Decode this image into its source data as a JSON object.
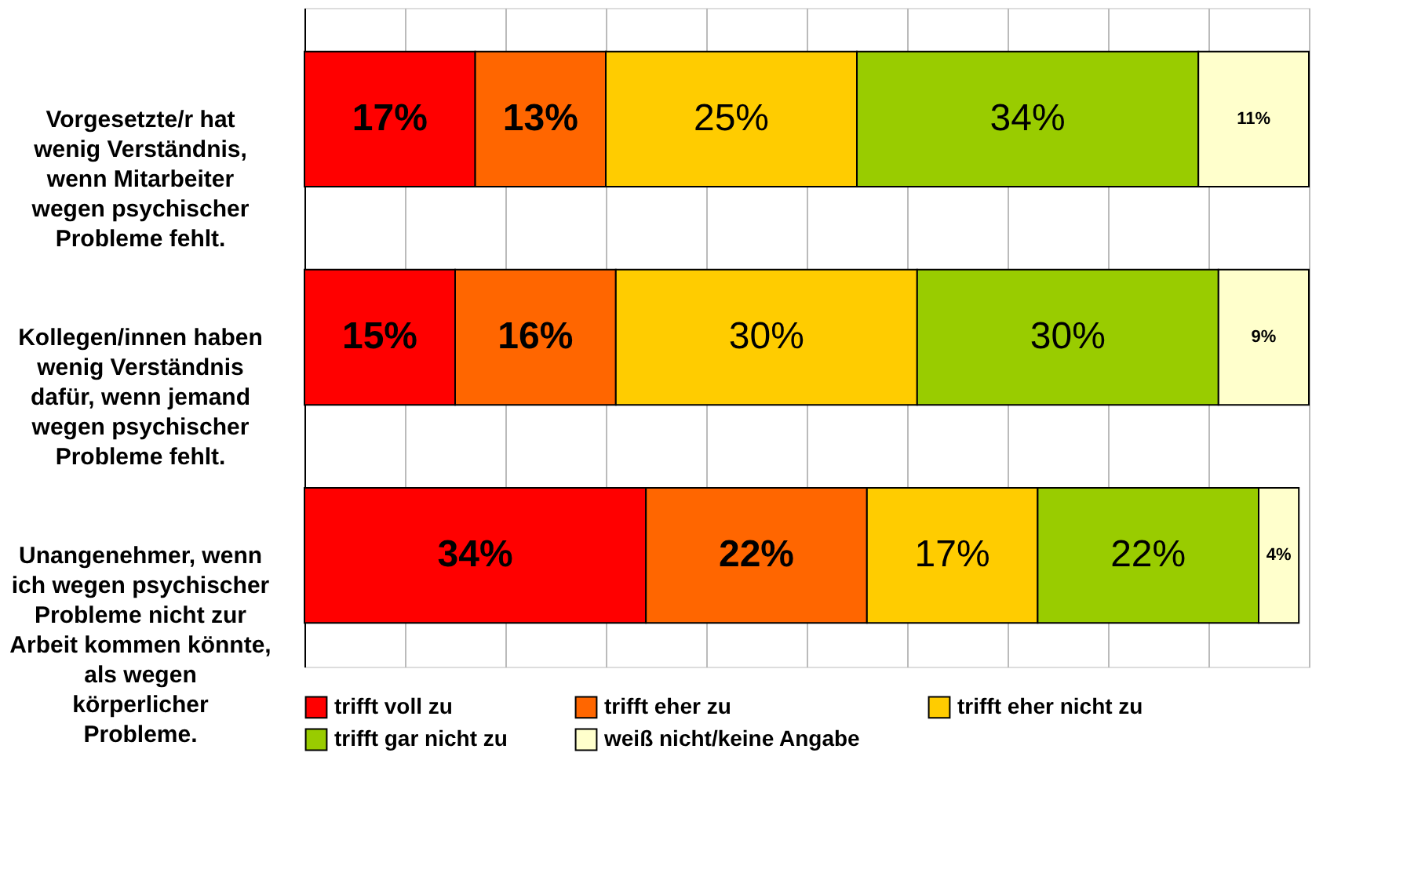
{
  "chart_data": {
    "type": "bar",
    "orientation": "horizontal",
    "stacked": true,
    "categories": [
      "Vorgesetzte/r hat wenig Verständnis, wenn  Mitarbeiter wegen psychischer Probleme fehlt.",
      "Kollegen/innen haben wenig Verständnis dafür, wenn  jemand wegen psychischer Probleme fehlt.",
      "Unangenehmer, wenn ich wegen psychischer Probleme nicht zur Arbeit kommen könnte, als wegen körperlicher Probleme."
    ],
    "series": [
      {
        "name": "trifft voll zu",
        "color": "#ff0000",
        "values": [
          17,
          15,
          34
        ],
        "value_labels": [
          "17%",
          "15%",
          "34%"
        ]
      },
      {
        "name": "trifft eher zu",
        "color": "#ff6600",
        "values": [
          13,
          16,
          22
        ],
        "value_labels": [
          "13%",
          "16%",
          "22%"
        ]
      },
      {
        "name": "trifft eher nicht zu",
        "color": "#ffcc00",
        "values": [
          25,
          30,
          17
        ],
        "value_labels": [
          "25%",
          "30%",
          "17%"
        ]
      },
      {
        "name": "trifft gar nicht zu",
        "color": "#99cc00",
        "values": [
          34,
          30,
          22
        ],
        "value_labels": [
          "34%",
          "30%",
          "22%"
        ]
      },
      {
        "name": "weiß nicht/keine Angabe",
        "color": "#ffffcc",
        "values": [
          11,
          9,
          4
        ],
        "value_labels": [
          "11%",
          "9%",
          "4%"
        ]
      }
    ],
    "xlim": [
      0,
      100
    ],
    "xticks": [
      {
        "value": 0,
        "label": null
      },
      {
        "value": 10,
        "label": null
      },
      {
        "value": 20,
        "label": null
      },
      {
        "value": 30,
        "label": null
      },
      {
        "value": 40,
        "label": null
      },
      {
        "value": 50,
        "label": null
      },
      {
        "value": 60,
        "label": null
      },
      {
        "value": 70,
        "label": null
      },
      {
        "value": 80,
        "label": null
      },
      {
        "value": 90,
        "label": null
      },
      {
        "value": 100,
        "label": null
      }
    ],
    "tick_labels": "y",
    "grid": "x",
    "legend": "bottom"
  }
}
